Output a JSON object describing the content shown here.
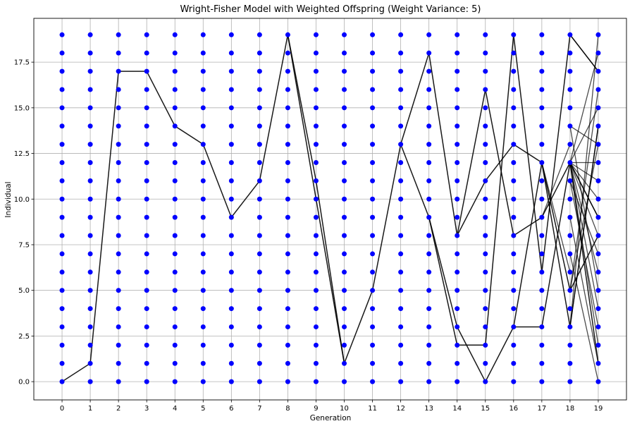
{
  "chart_data": {
    "type": "scatter",
    "title": "Wright-Fisher Model with Weighted Offspring (Weight Variance: 5)",
    "xlabel": "Generation",
    "ylabel": "Individual",
    "x": [
      0,
      1,
      2,
      3,
      4,
      5,
      6,
      7,
      8,
      9,
      10,
      11,
      12,
      13,
      14,
      15,
      16,
      17,
      18,
      19
    ],
    "xlim": [
      -1,
      20
    ],
    "ylim": [
      -1,
      19.9
    ],
    "xticks": [
      "0",
      "1",
      "2",
      "3",
      "4",
      "5",
      "6",
      "7",
      "8",
      "9",
      "10",
      "11",
      "12",
      "13",
      "14",
      "15",
      "16",
      "17",
      "18",
      "19"
    ],
    "yticks": [
      {
        "value": 0,
        "label": "0.0"
      },
      {
        "value": 2.5,
        "label": "2.5"
      },
      {
        "value": 5,
        "label": "5.0"
      },
      {
        "value": 7.5,
        "label": "7.5"
      },
      {
        "value": 10,
        "label": "10.0"
      },
      {
        "value": 12.5,
        "label": "12.5"
      },
      {
        "value": 15,
        "label": "15.0"
      },
      {
        "value": 17.5,
        "label": "17.5"
      }
    ],
    "grid": true,
    "individuals_per_generation": 20,
    "point_color": "#0000ff",
    "line_color": "#000000",
    "lineages": [
      [
        [
          0,
          0
        ],
        [
          1,
          1
        ],
        [
          2,
          17
        ],
        [
          3,
          17
        ],
        [
          4,
          14
        ],
        [
          5,
          13
        ],
        [
          6,
          9
        ],
        [
          7,
          11
        ],
        [
          8,
          19
        ],
        [
          9,
          10
        ],
        [
          10,
          1
        ],
        [
          11,
          5
        ],
        [
          12,
          13
        ],
        [
          13,
          18
        ],
        [
          14,
          8
        ],
        [
          15,
          11
        ],
        [
          16,
          13
        ],
        [
          17,
          12
        ],
        [
          18,
          3
        ],
        [
          19,
          14
        ]
      ],
      [
        [
          14,
          8
        ],
        [
          15,
          16
        ],
        [
          16,
          8
        ],
        [
          17,
          9
        ],
        [
          18,
          12
        ],
        [
          19,
          1
        ]
      ],
      [
        [
          12,
          13
        ],
        [
          13,
          9
        ],
        [
          14,
          2
        ],
        [
          15,
          2
        ],
        [
          16,
          19
        ],
        [
          17,
          6
        ],
        [
          18,
          19
        ],
        [
          19,
          17
        ]
      ],
      [
        [
          13,
          9
        ],
        [
          14,
          3
        ],
        [
          15,
          0
        ],
        [
          16,
          3
        ],
        [
          17,
          3
        ],
        [
          18,
          12
        ],
        [
          19,
          9
        ]
      ],
      [
        [
          8,
          19
        ],
        [
          9,
          11
        ],
        [
          10,
          1
        ]
      ],
      [
        [
          16,
          3
        ],
        [
          17,
          12
        ],
        [
          18,
          5
        ],
        [
          19,
          8
        ]
      ]
    ],
    "final_links": [
      [
        [
          18,
          19
        ],
        [
          19,
          17
        ]
      ],
      [
        [
          18,
          14
        ],
        [
          19,
          5
        ]
      ],
      [
        [
          18,
          14
        ],
        [
          19,
          13
        ]
      ],
      [
        [
          18,
          12
        ],
        [
          19,
          18
        ]
      ],
      [
        [
          18,
          12
        ],
        [
          19,
          15
        ]
      ],
      [
        [
          18,
          12
        ],
        [
          19,
          12
        ]
      ],
      [
        [
          18,
          12
        ],
        [
          19,
          11
        ]
      ],
      [
        [
          18,
          12
        ],
        [
          19,
          10
        ]
      ],
      [
        [
          18,
          12
        ],
        [
          19,
          9
        ]
      ],
      [
        [
          18,
          12
        ],
        [
          19,
          8
        ]
      ],
      [
        [
          18,
          12
        ],
        [
          19,
          6
        ]
      ],
      [
        [
          18,
          12
        ],
        [
          19,
          4
        ]
      ],
      [
        [
          18,
          12
        ],
        [
          19,
          2
        ]
      ],
      [
        [
          18,
          11
        ],
        [
          19,
          7
        ]
      ],
      [
        [
          18,
          11
        ],
        [
          19,
          3
        ]
      ],
      [
        [
          18,
          5
        ],
        [
          19,
          16
        ]
      ],
      [
        [
          18,
          5
        ],
        [
          19,
          13
        ]
      ],
      [
        [
          18,
          3
        ],
        [
          19,
          19
        ]
      ],
      [
        [
          18,
          3
        ],
        [
          19,
          14
        ]
      ],
      [
        [
          18,
          7
        ],
        [
          19,
          0
        ]
      ],
      [
        [
          18,
          9
        ],
        [
          19,
          1
        ]
      ],
      [
        [
          17,
          12
        ],
        [
          18,
          6
        ]
      ],
      [
        [
          17,
          9
        ],
        [
          18,
          13
        ]
      ]
    ]
  }
}
